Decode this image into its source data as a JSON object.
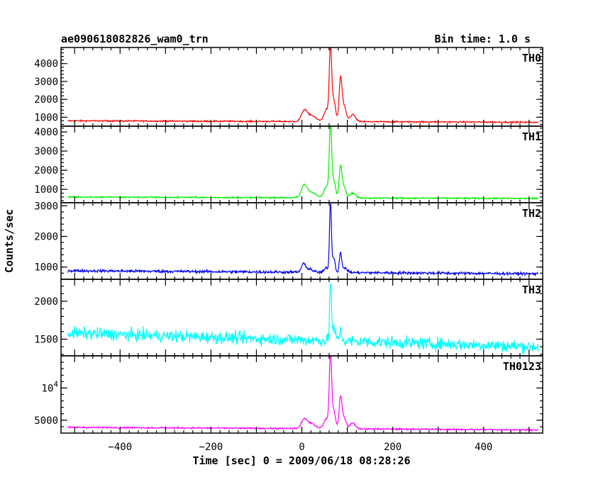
{
  "header": {
    "title": "ae090618082826_wam0_trn",
    "bin_time": "Bin time: 1.0 s"
  },
  "chart_data": {
    "type": "line",
    "x_range": [
      -530,
      530
    ],
    "x_ticks": [
      -400,
      -200,
      0,
      200,
      400
    ],
    "xlabel": "Time [sec] 0 = 2009/06/18 08:28:26",
    "ylabel": "Counts/sec",
    "grid": false,
    "panels": [
      {
        "name": "TH0",
        "color": "#ff0000",
        "ylim": [
          500,
          4900
        ],
        "y_ticks": [
          {
            "v": 1000,
            "label": "1000"
          },
          {
            "v": 2000,
            "label": "2000"
          },
          {
            "v": 3000,
            "label": "3000"
          },
          {
            "v": 4000,
            "label": "4000"
          }
        ],
        "baseline_start": 800,
        "baseline_end": 720,
        "noise": 40,
        "peaks": [
          {
            "t": 5,
            "h": 550,
            "w": 6
          },
          {
            "t": 20,
            "h": 350,
            "w": 10
          },
          {
            "t": 55,
            "h": 700,
            "w": 6
          },
          {
            "t": 63,
            "h": 3900,
            "w": 2.5
          },
          {
            "t": 70,
            "h": 1200,
            "w": 4
          },
          {
            "t": 85,
            "h": 2200,
            "w": 3
          },
          {
            "t": 92,
            "h": 900,
            "w": 5
          },
          {
            "t": 112,
            "h": 400,
            "w": 6
          }
        ]
      },
      {
        "name": "TH1",
        "color": "#00ee00",
        "ylim": [
          300,
          4300
        ],
        "y_ticks": [
          {
            "v": 1000,
            "label": "1000"
          },
          {
            "v": 2000,
            "label": "2000"
          },
          {
            "v": 3000,
            "label": "3000"
          },
          {
            "v": 4000,
            "label": "4000"
          }
        ],
        "baseline_start": 600,
        "baseline_end": 520,
        "noise": 40,
        "peaks": [
          {
            "t": 5,
            "h": 600,
            "w": 6
          },
          {
            "t": 20,
            "h": 300,
            "w": 10
          },
          {
            "t": 55,
            "h": 600,
            "w": 6
          },
          {
            "t": 63,
            "h": 3550,
            "w": 2.5
          },
          {
            "t": 70,
            "h": 900,
            "w": 4
          },
          {
            "t": 85,
            "h": 1500,
            "w": 3
          },
          {
            "t": 92,
            "h": 600,
            "w": 5
          },
          {
            "t": 112,
            "h": 250,
            "w": 6
          }
        ]
      },
      {
        "name": "TH2",
        "color": "#0000ee",
        "ylim": [
          600,
          3100
        ],
        "y_ticks": [
          {
            "v": 1000,
            "label": "1000"
          },
          {
            "v": 2000,
            "label": "2000"
          },
          {
            "v": 3000,
            "label": "3000"
          }
        ],
        "baseline_start": 880,
        "baseline_end": 780,
        "noise": 45,
        "peaks": [
          {
            "t": 3,
            "h": 250,
            "w": 4
          },
          {
            "t": 15,
            "h": 120,
            "w": 8
          },
          {
            "t": 55,
            "h": 150,
            "w": 5
          },
          {
            "t": 63,
            "h": 2350,
            "w": 2
          },
          {
            "t": 70,
            "h": 500,
            "w": 3
          },
          {
            "t": 85,
            "h": 650,
            "w": 2.5
          },
          {
            "t": 95,
            "h": 150,
            "w": 5
          }
        ]
      },
      {
        "name": "TH3",
        "color": "#00ffff",
        "ylim": [
          1280,
          2290
        ],
        "y_ticks": [
          {
            "v": 1500,
            "label": "1500"
          },
          {
            "v": 2000,
            "label": "2000"
          }
        ],
        "baseline_start": 1580,
        "baseline_end": 1400,
        "noise": 80,
        "peaks": [
          {
            "t": 63,
            "h": 720,
            "w": 2
          },
          {
            "t": 70,
            "h": 150,
            "w": 4
          },
          {
            "t": 85,
            "h": 120,
            "w": 3
          }
        ]
      },
      {
        "name": "TH0123",
        "color": "#ff00ff",
        "ylim": [
          3000,
          15000
        ],
        "y_ticks": [
          {
            "v": 5000,
            "label": "5000"
          },
          {
            "v": 10000,
            "label": "10^4"
          }
        ],
        "baseline_start": 3900,
        "baseline_end": 3500,
        "noise": 120,
        "peaks": [
          {
            "t": 5,
            "h": 1300,
            "w": 6
          },
          {
            "t": 20,
            "h": 800,
            "w": 10
          },
          {
            "t": 55,
            "h": 1600,
            "w": 6
          },
          {
            "t": 63,
            "h": 10800,
            "w": 2.5
          },
          {
            "t": 70,
            "h": 2800,
            "w": 4
          },
          {
            "t": 85,
            "h": 4500,
            "w": 3
          },
          {
            "t": 92,
            "h": 1800,
            "w": 5
          },
          {
            "t": 112,
            "h": 900,
            "w": 6
          }
        ]
      }
    ]
  }
}
